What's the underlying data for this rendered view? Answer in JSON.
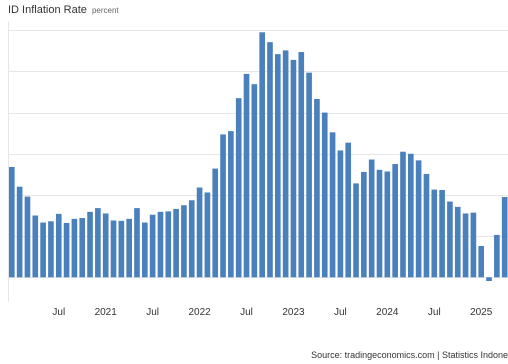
{
  "header": {
    "title": "ID Inflation Rate",
    "subtitle": "percent"
  },
  "footer": {
    "source": "Source: tradingeconomics.com | Statistics Indone"
  },
  "colors": {
    "bar": "#4a80bb",
    "grid": "#e6e6e6",
    "axis_text": "#333333"
  },
  "chart_data": {
    "type": "bar",
    "title": "ID Inflation Rate",
    "ylabel": "percent",
    "xlabel": "",
    "grid": true,
    "ylim": [
      -0.6,
      6.2
    ],
    "x_tick_labels": [
      "Jul",
      "2021",
      "Jul",
      "2022",
      "Jul",
      "2023",
      "Jul",
      "2024",
      "Jul",
      "2025"
    ],
    "categories": [
      "2020-01",
      "2020-02",
      "2020-03",
      "2020-04",
      "2020-05",
      "2020-06",
      "2020-07",
      "2020-08",
      "2020-09",
      "2020-10",
      "2020-11",
      "2020-12",
      "2021-01",
      "2021-02",
      "2021-03",
      "2021-04",
      "2021-05",
      "2021-06",
      "2021-07",
      "2021-08",
      "2021-09",
      "2021-10",
      "2021-11",
      "2021-12",
      "2022-01",
      "2022-02",
      "2022-03",
      "2022-04",
      "2022-05",
      "2022-06",
      "2022-07",
      "2022-08",
      "2022-09",
      "2022-10",
      "2022-11",
      "2022-12",
      "2023-01",
      "2023-02",
      "2023-03",
      "2023-04",
      "2023-05",
      "2023-06",
      "2023-07",
      "2023-08",
      "2023-09",
      "2023-10",
      "2023-11",
      "2023-12",
      "2024-01",
      "2024-02",
      "2024-03",
      "2024-04",
      "2024-05",
      "2024-06",
      "2024-07",
      "2024-08",
      "2024-09",
      "2024-10",
      "2024-11",
      "2024-12",
      "2025-01",
      "2025-02",
      "2025-03",
      "2025-04"
    ],
    "values": [
      2.68,
      2.2,
      1.96,
      1.5,
      1.33,
      1.36,
      1.54,
      1.32,
      1.42,
      1.44,
      1.59,
      1.68,
      1.55,
      1.38,
      1.37,
      1.42,
      1.68,
      1.33,
      1.52,
      1.59,
      1.6,
      1.66,
      1.75,
      1.87,
      2.18,
      2.06,
      2.64,
      3.47,
      3.55,
      4.35,
      4.94,
      4.69,
      5.95,
      5.71,
      5.42,
      5.51,
      5.28,
      5.47,
      4.97,
      4.33,
      4.0,
      3.52,
      3.08,
      3.27,
      2.28,
      2.56,
      2.86,
      2.61,
      2.57,
      2.75,
      3.05,
      3.0,
      2.84,
      2.51,
      2.13,
      2.12,
      1.84,
      1.71,
      1.55,
      1.57,
      0.76,
      -0.09,
      1.03,
      1.95
    ]
  }
}
